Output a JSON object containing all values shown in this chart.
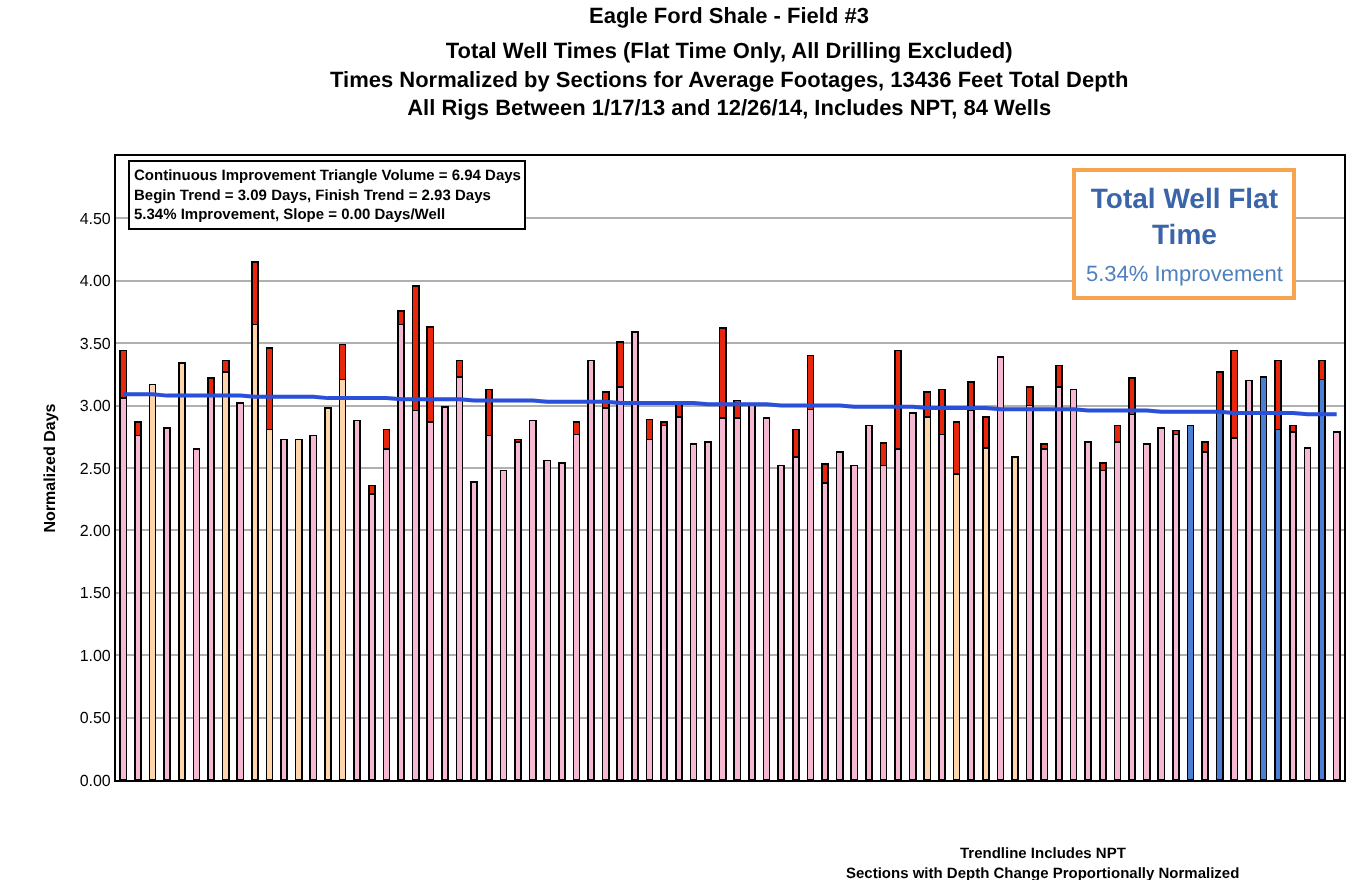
{
  "chart_data": {
    "type": "bar",
    "title": "Eagle Ford Shale - Field #3",
    "subtitle": "Total Well Times (Flat Time Only, All Drilling Excluded)\nTimes Normalized by Sections for Average Footages, 13436 Feet Total Depth\nAll Rigs Between 1/17/13 and 12/26/14, Includes NPT, 84 Wells",
    "ylabel": "Normalized Days",
    "annotations": [
      "Continuous Improvement Triangle Volume = 6.94 Days\nBegin Trend = 3.09 Days, Finish Trend = 2.93 Days\n5.34% Improvement, Slope = 0.00 Days/Well",
      "Total Well Flat\nTime",
      "5.34% Improvement",
      "Trendline Includes NPT",
      "Sections with Depth Change Proportionally Normalized"
    ],
    "categories": [
      null,
      null,
      null,
      null,
      null,
      null,
      null,
      null,
      null,
      null,
      null,
      null,
      null,
      null,
      null,
      null,
      null,
      null,
      null,
      null,
      null,
      null,
      null,
      null,
      null,
      null,
      null,
      null,
      null,
      null,
      null,
      null,
      null,
      null,
      null,
      null,
      null,
      null,
      null,
      null,
      null,
      null,
      null,
      null,
      null,
      null,
      null,
      null,
      null,
      null,
      null,
      null,
      null,
      null,
      null,
      null,
      null,
      null,
      null,
      null,
      null,
      null,
      null,
      null,
      null,
      null,
      null,
      null,
      null,
      null,
      null,
      null,
      null,
      null,
      null,
      null,
      null,
      null,
      null,
      null,
      null,
      null,
      null,
      null
    ],
    "stacked": true,
    "grid": "y",
    "tick_labels": "y",
    "ylim": [
      0,
      5
    ],
    "yticks": [
      {
        "value": 0,
        "label": "0.00"
      },
      {
        "value": 0.5,
        "label": "0.50"
      },
      {
        "value": 1,
        "label": "1.00"
      },
      {
        "value": 1.5,
        "label": "1.50"
      },
      {
        "value": 2,
        "label": "2.00"
      },
      {
        "value": 2.5,
        "label": "2.50"
      },
      {
        "value": 3,
        "label": "3.00"
      },
      {
        "value": 3.5,
        "label": "3.50"
      },
      {
        "value": 4,
        "label": "4.00"
      },
      {
        "value": 4.5,
        "label": "4.50"
      }
    ],
    "series": [
      {
        "values": [
          3.06,
          2.76,
          3.17,
          2.82,
          3.34,
          2.65,
          3.09,
          3.27,
          3.02,
          3.65,
          2.81,
          2.73,
          2.73,
          2.76,
          2.98,
          3.21,
          2.88,
          2.29,
          2.65,
          3.65,
          2.96,
          2.87,
          2.99,
          3.23,
          2.39,
          2.76,
          2.48,
          2.71,
          2.88,
          2.56,
          2.54,
          2.77,
          3.36,
          2.98,
          3.15,
          3.59,
          2.73,
          2.84,
          2.91,
          2.69,
          2.71,
          2.9,
          2.9,
          3.0,
          2.9,
          2.52,
          2.59,
          2.97,
          2.38,
          2.63,
          2.52,
          2.84,
          2.52,
          2.65,
          2.94,
          2.91,
          2.77,
          2.45,
          2.96,
          2.66,
          3.39,
          2.59,
          3.0,
          2.65,
          3.15,
          3.13,
          2.71,
          2.48,
          2.71,
          2.93,
          2.69,
          2.82,
          2.77,
          2.84,
          2.63,
          2.95,
          2.74,
          3.2,
          3.23,
          2.81,
          2.79,
          2.66,
          3.21,
          2.79
        ],
        "colors": [
          "#f4b8d2",
          "#f4b8d2",
          "#fcd6aa",
          "#f4b8d2",
          "#fcd6aa",
          "#f4b8d2",
          "#f4b8d2",
          "#fcd6aa",
          "#f4b8d2",
          "#fcd6aa",
          "#fcd6aa",
          "#f4b8d2",
          "#fcd6aa",
          "#f4b8d2",
          "#fcd6aa",
          "#fcd6aa",
          "#f4b8d2",
          "#f4b8d2",
          "#f4b8d2",
          "#f4b8d2",
          "#f4b8d2",
          "#f4b8d2",
          "#f4b8d2",
          "#f4b8d2",
          "#f4b8d2",
          "#f4b8d2",
          "#f4b8d2",
          "#f4b8d2",
          "#f4b8d2",
          "#f4b8d2",
          "#f4b8d2",
          "#f4b8d2",
          "#f4b8d2",
          "#f4b8d2",
          "#f4b8d2",
          "#f4b8d2",
          "#f4b8d2",
          "#f4b8d2",
          "#f4b8d2",
          "#f4b8d2",
          "#f4b8d2",
          "#f4b8d2",
          "#f4b8d2",
          "#f4b8d2",
          "#f4b8d2",
          "#f4b8d2",
          "#f4b8d2",
          "#f4b8d2",
          "#f4b8d2",
          "#f4b8d2",
          "#f4b8d2",
          "#f4b8d2",
          "#f4b8d2",
          "#f4b8d2",
          "#f4b8d2",
          "#fcd6aa",
          "#f4b8d2",
          "#fcd6aa",
          "#f4b8d2",
          "#fcd6aa",
          "#f4b8d2",
          "#fcd6aa",
          "#f4b8d2",
          "#f4b8d2",
          "#f4b8d2",
          "#f4b8d2",
          "#f4b8d2",
          "#f4b8d2",
          "#f4b8d2",
          "#f4b8d2",
          "#f4b8d2",
          "#f4b8d2",
          "#f4b8d2",
          "#4a7fd4",
          "#f4b8d2",
          "#4a7fd4",
          "#f4b8d2",
          "#f4b8d2",
          "#4a7fd4",
          "#4a7fd4",
          "#f4b8d2",
          "#f4b8d2",
          "#4a7fd4",
          "#f4b8d2"
        ]
      },
      {
        "color": "#e8260c",
        "values": [
          0.38,
          0.11,
          null,
          null,
          null,
          null,
          0.13,
          0.09,
          null,
          0.5,
          0.65,
          null,
          null,
          null,
          null,
          0.28,
          null,
          0.07,
          0.16,
          0.11,
          1.0,
          0.76,
          null,
          0.13,
          null,
          0.37,
          null,
          0.02,
          null,
          null,
          null,
          0.1,
          null,
          0.13,
          0.36,
          null,
          0.16,
          0.03,
          0.1,
          null,
          null,
          0.72,
          0.14,
          null,
          null,
          null,
          0.22,
          0.43,
          0.15,
          null,
          null,
          null,
          0.18,
          0.79,
          null,
          0.2,
          0.36,
          0.42,
          0.23,
          0.25,
          null,
          null,
          0.15,
          0.04,
          0.17,
          null,
          null,
          0.06,
          0.13,
          0.29,
          null,
          null,
          0.03,
          null,
          0.08,
          0.32,
          0.7,
          null,
          null,
          0.55,
          0.05,
          null,
          0.15,
          null
        ]
      },
      {
        "type": "line",
        "color": "#2a4fd8",
        "values": [
          3.09,
          3.09,
          3.09,
          3.08,
          3.08,
          3.08,
          3.08,
          3.08,
          3.08,
          3.07,
          3.07,
          3.07,
          3.07,
          3.07,
          3.06,
          3.06,
          3.06,
          3.06,
          3.06,
          3.05,
          3.05,
          3.05,
          3.05,
          3.05,
          3.04,
          3.04,
          3.04,
          3.04,
          3.04,
          3.03,
          3.03,
          3.03,
          3.03,
          3.03,
          3.02,
          3.02,
          3.02,
          3.02,
          3.02,
          3.02,
          3.01,
          3.01,
          3.01,
          3.01,
          3.01,
          3.0,
          3.0,
          3.0,
          3.0,
          3.0,
          2.99,
          2.99,
          2.99,
          2.99,
          2.99,
          2.98,
          2.98,
          2.98,
          2.98,
          2.98,
          2.97,
          2.97,
          2.97,
          2.97,
          2.97,
          2.97,
          2.96,
          2.96,
          2.96,
          2.96,
          2.96,
          2.95,
          2.95,
          2.95,
          2.95,
          2.95,
          2.94,
          2.94,
          2.94,
          2.94,
          2.94,
          2.93,
          2.93,
          2.93
        ]
      }
    ]
  }
}
